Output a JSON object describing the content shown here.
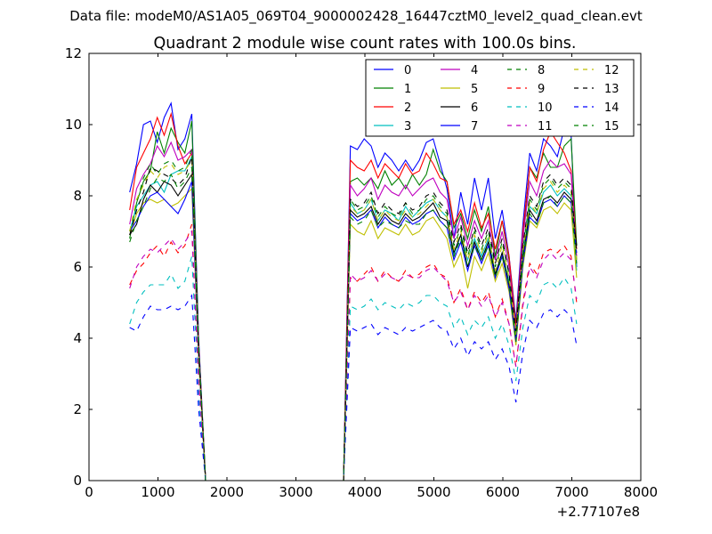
{
  "chart_data": {
    "type": "line",
    "suptitle": "Data file: modeM0/AS1A05_069T04_9000002428_16447cztM0_level2_quad_clean.evt",
    "title": "Quadrant 2 module wise count rates with 100.0s bins.",
    "xlabel": "",
    "ylabel": "",
    "x_offset_label": "+2.77107e8",
    "xlim": [
      0,
      8000
    ],
    "ylim": [
      0,
      12
    ],
    "xticks": [
      0,
      1000,
      2000,
      3000,
      4000,
      5000,
      6000,
      7000,
      8000
    ],
    "yticks": [
      0,
      2,
      4,
      6,
      8,
      10,
      12
    ],
    "xtick_labels": [
      "0",
      "1000",
      "2000",
      "3000",
      "4000",
      "5000",
      "6000",
      "7000",
      "8000"
    ],
    "ytick_labels": [
      "0",
      "2",
      "4",
      "6",
      "8",
      "10",
      "12"
    ],
    "legend_position": "top-right",
    "x": [
      590,
      690,
      790,
      890,
      990,
      1090,
      1190,
      1290,
      1390,
      1490,
      1590,
      1690,
      3690,
      3790,
      3890,
      3990,
      4090,
      4190,
      4290,
      4390,
      4490,
      4590,
      4690,
      4790,
      4890,
      4990,
      5090,
      5190,
      5290,
      5390,
      5490,
      5590,
      5690,
      5790,
      5890,
      5990,
      6090,
      6190,
      6290,
      6390,
      6490,
      6590,
      6690,
      6790,
      6890,
      6990,
      7070
    ],
    "series": [
      {
        "name": "0",
        "color": "#0000ff",
        "dash": "solid",
        "values": [
          8.1,
          8.9,
          10.0,
          10.1,
          9.5,
          10.2,
          10.6,
          9.3,
          9.6,
          10.3,
          4.0,
          0,
          0,
          9.4,
          9.3,
          9.6,
          9.4,
          8.8,
          9.2,
          9.0,
          8.7,
          9.0,
          8.7,
          9.0,
          9.5,
          9.6,
          8.9,
          8.2,
          6.8,
          8.1,
          7.2,
          8.5,
          7.6,
          8.5,
          6.8,
          7.6,
          6.3,
          4.5,
          7.2,
          9.2,
          8.7,
          9.6,
          9.4,
          9.1,
          9.9,
          9.7,
          6.0
        ]
      },
      {
        "name": "1",
        "color": "#008000",
        "dash": "solid",
        "values": [
          6.8,
          7.8,
          8.4,
          8.7,
          9.8,
          9.2,
          9.9,
          9.5,
          9.2,
          10.1,
          3.9,
          0,
          0,
          8.4,
          8.5,
          8.3,
          8.5,
          8.2,
          8.7,
          8.3,
          8.5,
          8.2,
          8.6,
          8.3,
          8.6,
          9.3,
          8.7,
          8.4,
          7.1,
          7.5,
          6.8,
          7.6,
          7.0,
          7.7,
          6.3,
          7.3,
          6.2,
          4.4,
          6.8,
          8.8,
          8.5,
          9.2,
          8.8,
          8.8,
          9.4,
          9.6,
          6.6
        ]
      },
      {
        "name": "2",
        "color": "#ff0000",
        "dash": "solid",
        "values": [
          7.6,
          8.8,
          9.2,
          9.6,
          10.2,
          9.7,
          10.3,
          9.4,
          8.9,
          9.2,
          3.8,
          0,
          0,
          9.0,
          8.8,
          8.7,
          9.0,
          8.5,
          8.9,
          8.7,
          8.5,
          8.9,
          8.6,
          8.7,
          9.2,
          8.9,
          8.5,
          8.4,
          7.2,
          7.6,
          7.0,
          7.8,
          7.1,
          7.5,
          6.5,
          7.3,
          6.3,
          4.3,
          7.0,
          8.8,
          8.4,
          9.3,
          9.8,
          9.5,
          9.2,
          8.7,
          6.5
        ]
      },
      {
        "name": "3",
        "color": "#00bfbf",
        "dash": "solid",
        "values": [
          7.0,
          7.7,
          8.0,
          8.3,
          8.4,
          8.1,
          8.6,
          8.7,
          8.7,
          9.1,
          3.6,
          0,
          0,
          7.8,
          7.5,
          7.6,
          7.9,
          7.3,
          7.6,
          7.5,
          7.3,
          7.7,
          7.4,
          7.6,
          7.8,
          7.9,
          7.6,
          7.4,
          6.3,
          6.9,
          6.2,
          6.8,
          6.3,
          6.8,
          5.8,
          6.4,
          5.6,
          4.0,
          6.3,
          7.7,
          7.5,
          8.1,
          8.3,
          8.0,
          8.2,
          8.0,
          5.9
        ]
      },
      {
        "name": "4",
        "color": "#bf00bf",
        "dash": "solid",
        "values": [
          7.2,
          8.2,
          8.6,
          8.9,
          9.4,
          9.1,
          9.5,
          9.0,
          9.1,
          9.3,
          3.8,
          0,
          0,
          8.3,
          8.0,
          8.2,
          8.5,
          7.9,
          8.3,
          8.1,
          8.0,
          8.3,
          8.0,
          8.2,
          8.4,
          8.5,
          8.1,
          7.9,
          6.8,
          7.4,
          6.6,
          7.3,
          6.8,
          7.3,
          6.2,
          7.0,
          6.0,
          4.2,
          6.8,
          8.4,
          8.0,
          8.7,
          9.0,
          8.8,
          8.9,
          8.6,
          6.3
        ]
      },
      {
        "name": "5",
        "color": "#bfbf00",
        "dash": "solid",
        "values": [
          6.9,
          7.5,
          7.8,
          7.9,
          7.8,
          7.9,
          7.7,
          7.8,
          8.0,
          8.2,
          3.4,
          0,
          0,
          7.2,
          7.0,
          6.9,
          7.3,
          6.8,
          7.1,
          7.0,
          6.9,
          7.2,
          6.9,
          7.0,
          7.3,
          7.4,
          7.1,
          6.8,
          6.0,
          6.4,
          5.4,
          6.3,
          5.9,
          6.4,
          5.6,
          6.1,
          5.3,
          3.8,
          6.0,
          7.3,
          7.1,
          7.6,
          7.7,
          7.5,
          7.8,
          7.6,
          5.7
        ]
      },
      {
        "name": "6",
        "color": "#000000",
        "dash": "solid",
        "values": [
          6.9,
          7.2,
          7.9,
          8.3,
          8.1,
          8.4,
          8.3,
          8.0,
          8.3,
          8.6,
          3.6,
          0,
          0,
          7.6,
          7.4,
          7.5,
          7.7,
          7.2,
          7.5,
          7.3,
          7.2,
          7.5,
          7.3,
          7.4,
          7.6,
          7.8,
          7.4,
          7.3,
          6.4,
          6.9,
          6.0,
          6.7,
          6.2,
          6.7,
          5.8,
          6.4,
          5.5,
          4.0,
          6.2,
          7.6,
          7.3,
          7.9,
          8.0,
          7.8,
          8.1,
          7.9,
          6.6
        ]
      },
      {
        "name": "7",
        "color": "#0000ff",
        "dash": "solid",
        "values": [
          7.0,
          7.3,
          7.7,
          8.0,
          8.1,
          7.9,
          7.7,
          7.5,
          7.9,
          8.4,
          3.5,
          0,
          0,
          7.5,
          7.3,
          7.4,
          7.6,
          7.1,
          7.4,
          7.2,
          7.1,
          7.4,
          7.2,
          7.3,
          7.5,
          7.6,
          7.3,
          7.1,
          6.2,
          6.7,
          5.9,
          6.6,
          6.1,
          6.6,
          5.7,
          6.3,
          5.4,
          3.9,
          6.1,
          7.4,
          7.2,
          7.8,
          7.9,
          7.7,
          8.0,
          7.8,
          6.4
        ]
      },
      {
        "name": "8",
        "color": "#008000",
        "dash": "dashed",
        "values": [
          7.0,
          7.8,
          8.5,
          8.9,
          8.6,
          8.9,
          9.0,
          8.7,
          8.8,
          9.3,
          3.7,
          0,
          0,
          7.9,
          7.6,
          7.7,
          8.0,
          7.4,
          7.7,
          7.5,
          7.4,
          7.8,
          7.5,
          7.6,
          7.9,
          8.0,
          7.7,
          7.5,
          6.6,
          7.1,
          6.3,
          7.0,
          6.5,
          7.0,
          6.0,
          6.7,
          5.8,
          4.1,
          6.5,
          7.9,
          7.6,
          8.3,
          8.5,
          8.2,
          8.4,
          8.2,
          6.2
        ]
      },
      {
        "name": "9",
        "color": "#ff0000",
        "dash": "dashed",
        "values": [
          5.5,
          5.9,
          6.1,
          6.4,
          6.6,
          6.3,
          6.7,
          6.4,
          6.6,
          7.2,
          2.8,
          0,
          0,
          5.7,
          5.6,
          5.8,
          6.0,
          5.6,
          5.9,
          5.7,
          5.6,
          5.9,
          5.7,
          5.8,
          6.0,
          6.1,
          5.8,
          5.7,
          5.0,
          5.4,
          4.8,
          5.3,
          5.0,
          5.3,
          4.6,
          5.1,
          4.4,
          3.2,
          5.0,
          6.1,
          5.8,
          6.4,
          6.5,
          6.4,
          6.6,
          6.3,
          5.0
        ]
      },
      {
        "name": "10",
        "color": "#00bfbf",
        "dash": "dashed",
        "values": [
          4.4,
          5.0,
          5.3,
          5.5,
          5.5,
          5.5,
          5.8,
          5.4,
          5.6,
          6.3,
          2.4,
          0,
          0,
          4.9,
          4.8,
          4.9,
          5.1,
          4.8,
          5.0,
          4.9,
          4.8,
          5.0,
          4.9,
          5.0,
          5.2,
          5.2,
          5.0,
          4.9,
          4.3,
          4.6,
          4.1,
          4.5,
          4.3,
          4.6,
          4.0,
          4.4,
          3.8,
          2.8,
          4.3,
          5.2,
          5.0,
          5.5,
          5.6,
          5.4,
          5.7,
          5.4,
          4.4
        ]
      },
      {
        "name": "11",
        "color": "#bf00bf",
        "dash": "dashed",
        "values": [
          5.4,
          6.0,
          6.3,
          6.5,
          6.4,
          6.6,
          6.8,
          6.5,
          6.7,
          7.0,
          2.8,
          0,
          0,
          5.8,
          5.6,
          5.7,
          5.9,
          5.6,
          5.8,
          5.7,
          5.6,
          5.8,
          5.7,
          5.7,
          5.9,
          6.0,
          5.8,
          5.6,
          5.0,
          5.3,
          4.8,
          5.2,
          4.9,
          5.2,
          4.6,
          5.0,
          4.4,
          3.2,
          4.9,
          6.0,
          5.7,
          6.2,
          6.4,
          6.2,
          6.4,
          6.2,
          5.1
        ]
      },
      {
        "name": "12",
        "color": "#bfbf00",
        "dash": "dashed",
        "values": [
          7.0,
          7.9,
          8.3,
          8.7,
          8.5,
          8.8,
          8.9,
          8.6,
          8.7,
          9.0,
          3.6,
          0,
          0,
          7.7,
          7.5,
          7.6,
          7.9,
          7.3,
          7.6,
          7.4,
          7.3,
          7.6,
          7.4,
          7.5,
          7.7,
          7.9,
          7.6,
          7.4,
          6.5,
          7.0,
          6.2,
          6.9,
          6.4,
          6.9,
          5.9,
          6.6,
          5.7,
          4.1,
          6.4,
          7.8,
          7.5,
          8.2,
          8.4,
          8.1,
          8.3,
          8.1,
          6.2
        ]
      },
      {
        "name": "13",
        "color": "#000000",
        "dash": "dashed",
        "values": [
          6.9,
          7.6,
          8.1,
          8.8,
          8.7,
          8.6,
          8.5,
          8.3,
          8.5,
          9.1,
          3.7,
          0,
          0,
          7.9,
          7.7,
          7.8,
          8.1,
          7.5,
          7.8,
          7.6,
          7.5,
          7.8,
          7.6,
          7.7,
          8.0,
          8.1,
          7.8,
          7.6,
          6.7,
          7.2,
          6.4,
          7.1,
          6.6,
          7.1,
          6.1,
          6.8,
          5.8,
          4.2,
          6.6,
          8.0,
          7.7,
          8.4,
          8.6,
          8.3,
          8.5,
          8.3,
          6.4
        ]
      },
      {
        "name": "14",
        "color": "#0000ff",
        "dash": "dashed",
        "values": [
          4.3,
          4.2,
          4.6,
          4.9,
          4.8,
          4.8,
          4.9,
          4.8,
          4.9,
          5.2,
          2.0,
          0,
          0,
          4.3,
          4.2,
          4.3,
          4.4,
          4.1,
          4.3,
          4.2,
          4.1,
          4.3,
          4.2,
          4.3,
          4.4,
          4.5,
          4.3,
          4.2,
          3.7,
          4.0,
          3.5,
          3.9,
          3.7,
          3.9,
          3.4,
          3.7,
          3.2,
          2.2,
          3.6,
          4.5,
          4.3,
          4.7,
          4.8,
          4.6,
          4.8,
          4.6,
          3.8
        ]
      },
      {
        "name": "15",
        "color": "#008000",
        "dash": "dashed",
        "values": [
          6.7,
          7.3,
          7.7,
          8.2,
          8.5,
          8.4,
          8.6,
          8.2,
          8.4,
          8.8,
          3.6,
          0,
          0,
          7.4,
          7.2,
          7.3,
          7.6,
          7.1,
          7.3,
          7.2,
          7.1,
          7.3,
          7.2,
          7.2,
          7.5,
          7.6,
          7.3,
          7.1,
          6.3,
          6.8,
          6.0,
          6.6,
          6.2,
          6.6,
          5.7,
          6.3,
          5.5,
          3.9,
          6.1,
          7.5,
          7.2,
          7.8,
          8.0,
          7.7,
          8.0,
          7.8,
          6.1
        ]
      }
    ]
  }
}
